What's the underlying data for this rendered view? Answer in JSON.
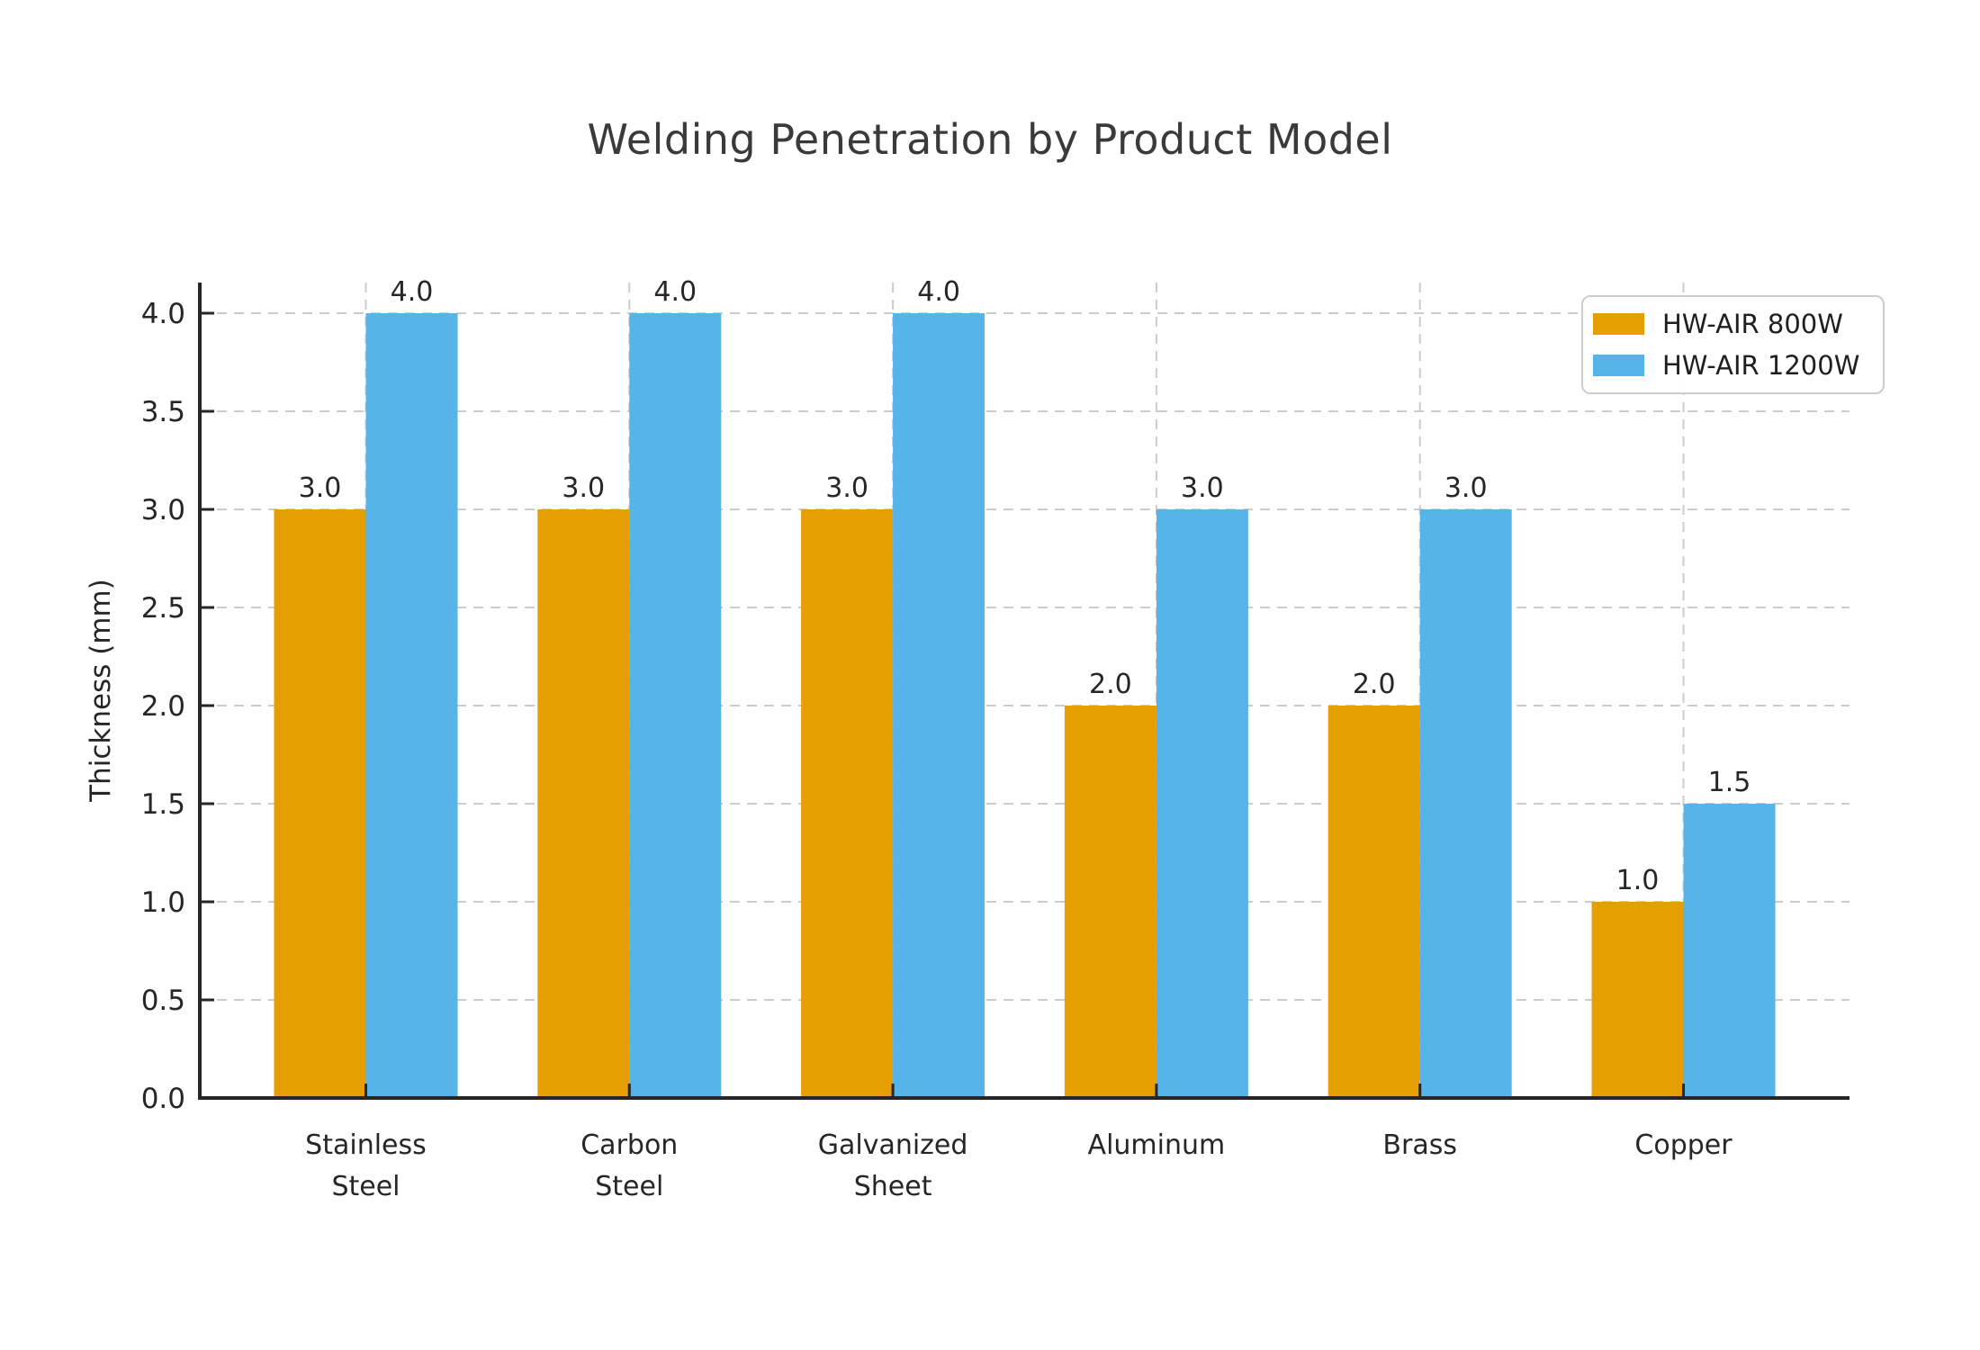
{
  "figure": {
    "background": "#ffffff"
  },
  "chart_data": {
    "type": "bar",
    "title": "Welding Penetration by Product Model",
    "xlabel": "",
    "ylabel": "Thickness (mm)",
    "categories": [
      "Stainless Steel",
      "Carbon Steel",
      "Galvanized Sheet",
      "Aluminum",
      "Brass",
      "Copper"
    ],
    "category_label_lines": [
      [
        "Stainless",
        "Steel"
      ],
      [
        "Carbon",
        "Steel"
      ],
      [
        "Galvanized",
        "Sheet"
      ],
      [
        "Aluminum"
      ],
      [
        "Brass"
      ],
      [
        "Copper"
      ]
    ],
    "series": [
      {
        "name": "HW-AIR 800W",
        "color": "#E69F00",
        "values": [
          3.0,
          3.0,
          3.0,
          2.0,
          2.0,
          1.0
        ]
      },
      {
        "name": "HW-AIR 1200W",
        "color": "#56B4E9",
        "values": [
          4.0,
          4.0,
          4.0,
          3.0,
          3.0,
          1.5
        ]
      }
    ],
    "bar_value_labels": {
      "HW-AIR 800W": [
        "3.0",
        "3.0",
        "3.0",
        "2.0",
        "2.0",
        "1.0"
      ],
      "HW-AIR 1200W": [
        "4.0",
        "4.0",
        "4.0",
        "3.0",
        "3.0",
        "1.5"
      ]
    },
    "ylim": [
      0,
      4.16
    ],
    "ytick_labels": [
      "0.0",
      "0.5",
      "1.0",
      "1.5",
      "2.0",
      "2.5",
      "3.0",
      "3.5",
      "4.0"
    ],
    "grid": {
      "horizontal": true,
      "vertical": true,
      "style": "dashed",
      "color": "#cccccc"
    },
    "legend": {
      "position": "upper right",
      "entries": [
        "HW-AIR 800W",
        "HW-AIR 1200W"
      ]
    },
    "text_color": "#262626",
    "title_color": "#3a3a3a",
    "spine_color": "#262626"
  }
}
